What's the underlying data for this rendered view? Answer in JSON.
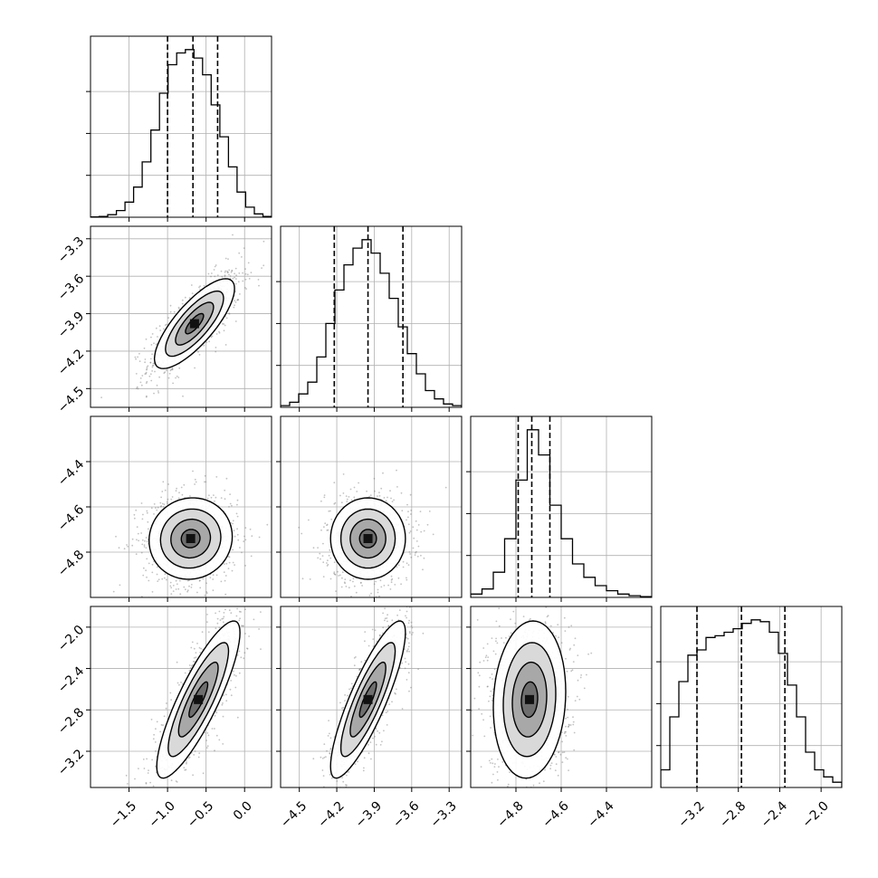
{
  "chart_data": {
    "type": "corner",
    "grid": true,
    "parameters": [
      {
        "range": [
          -2.0,
          0.35
        ],
        "ticks": [
          -1.5,
          -1.0,
          -0.5,
          0.0
        ],
        "tick_labels": [
          "−1.5",
          "−1.0",
          "−0.5",
          "0.0"
        ],
        "quantiles": [
          -1.0,
          -0.67,
          -0.35
        ],
        "hist": [
          0.002,
          0.005,
          0.015,
          0.04,
          0.09,
          0.18,
          0.33,
          0.52,
          0.74,
          0.91,
          0.98,
          1.0,
          0.95,
          0.85,
          0.67,
          0.48,
          0.3,
          0.15,
          0.06,
          0.02,
          0.005
        ]
      },
      {
        "range": [
          -4.65,
          -3.2
        ],
        "ticks": [
          -4.5,
          -4.2,
          -3.9,
          -3.6,
          -3.3
        ],
        "tick_labels": [
          "−4.5",
          "−4.2",
          "−3.9",
          "−3.6",
          "−3.3"
        ],
        "quantiles": [
          -4.22,
          -3.95,
          -3.67
        ],
        "hist": [
          0.01,
          0.03,
          0.08,
          0.15,
          0.3,
          0.5,
          0.7,
          0.85,
          0.95,
          1.0,
          0.92,
          0.8,
          0.65,
          0.48,
          0.32,
          0.2,
          0.1,
          0.05,
          0.02,
          0.01
        ]
      },
      {
        "range": [
          -5.0,
          -4.2
        ],
        "ticks": [
          -4.8,
          -4.6,
          -4.4
        ],
        "tick_labels": [
          "−4.8",
          "−4.6",
          "−4.4"
        ],
        "quantiles": [
          -4.79,
          -4.73,
          -4.65
        ],
        "hist": [
          0.02,
          0.05,
          0.15,
          0.35,
          0.7,
          1.0,
          0.85,
          0.55,
          0.35,
          0.2,
          0.12,
          0.07,
          0.04,
          0.02,
          0.01,
          0.005
        ]
      },
      {
        "range": [
          -3.55,
          -1.8
        ],
        "ticks": [
          -3.2,
          -2.8,
          -2.4,
          -2.0
        ],
        "tick_labels": [
          "−3.2",
          "−2.8",
          "−2.4",
          "−2.0"
        ],
        "quantiles": [
          -3.2,
          -2.77,
          -2.35
        ],
        "hist": [
          0.1,
          0.4,
          0.6,
          0.75,
          0.78,
          0.85,
          0.86,
          0.88,
          0.9,
          0.93,
          0.95,
          0.94,
          0.88,
          0.76,
          0.58,
          0.4,
          0.2,
          0.1,
          0.06,
          0.03
        ]
      }
    ],
    "pairs": [
      {
        "x": 0,
        "y": 1,
        "center": [
          -0.65,
          -3.98
        ],
        "sd": [
          0.26,
          0.18
        ],
        "rho": 0.78
      },
      {
        "x": 0,
        "y": 2,
        "center": [
          -0.7,
          -4.74
        ],
        "sd": [
          0.27,
          0.09
        ],
        "rho": 0.05
      },
      {
        "x": 1,
        "y": 2,
        "center": [
          -3.95,
          -4.74
        ],
        "sd": [
          0.15,
          0.09
        ],
        "rho": 0.0
      },
      {
        "x": 0,
        "y": 3,
        "center": [
          -0.6,
          -2.7
        ],
        "sd": [
          0.27,
          0.38
        ],
        "rho": 0.85
      },
      {
        "x": 1,
        "y": 3,
        "center": [
          -3.95,
          -2.7
        ],
        "sd": [
          0.15,
          0.38
        ],
        "rho": 0.85
      },
      {
        "x": 2,
        "y": 3,
        "center": [
          -4.74,
          -2.7
        ],
        "sd": [
          0.08,
          0.38
        ],
        "rho": 0.1
      }
    ]
  }
}
